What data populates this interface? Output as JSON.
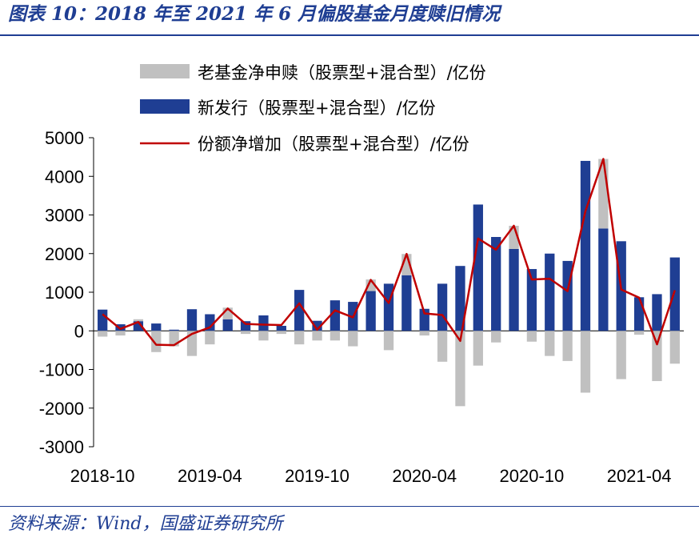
{
  "title": "图表 10：2018 年至 2021 年 6 月偏股基金月度赎旧情况",
  "source": "资料来源：Wind，国盛证券研究所",
  "colors": {
    "old": "#c0c0c0",
    "new": "#1f3e93",
    "net": "#c00000",
    "header": "#1f3e93"
  },
  "chart_data": {
    "type": "bar",
    "stacked": true,
    "ylim": [
      -3000,
      5000
    ],
    "yticks": [
      "5000",
      "4000",
      "3000",
      "2000",
      "1000",
      "0",
      "-1000",
      "-2000",
      "-3000"
    ],
    "ytick_values": [
      5000,
      4000,
      3000,
      2000,
      1000,
      0,
      -1000,
      -2000,
      -3000
    ],
    "categories": [
      "2018-10",
      "2018-11",
      "2018-12",
      "2019-01",
      "2019-02",
      "2019-03",
      "2019-04",
      "2019-05",
      "2019-06",
      "2019-07",
      "2019-08",
      "2019-09",
      "2019-10",
      "2019-11",
      "2019-12",
      "2020-01",
      "2020-02",
      "2020-03",
      "2020-04",
      "2020-05",
      "2020-06",
      "2020-07",
      "2020-08",
      "2020-09",
      "2020-10",
      "2020-11",
      "2020-12",
      "2021-01",
      "2021-02",
      "2021-03",
      "2021-04",
      "2021-05",
      "2021-06"
    ],
    "xtick_labels": [
      {
        "index": 0,
        "label": "2018-10"
      },
      {
        "index": 6,
        "label": "2019-04"
      },
      {
        "index": 12,
        "label": "2019-10"
      },
      {
        "index": 18,
        "label": "2020-04"
      },
      {
        "index": 24,
        "label": "2020-10"
      },
      {
        "index": 30,
        "label": "2021-04"
      }
    ],
    "legend_position": "top",
    "series": [
      {
        "name": "老基金净申赎（股票型+混合型）/亿份",
        "kind": "bar",
        "values": [
          -150,
          -120,
          50,
          -550,
          -400,
          -650,
          -350,
          300,
          -80,
          -250,
          -80,
          -350,
          -250,
          -250,
          -400,
          300,
          -500,
          550,
          -120,
          -800,
          -1950,
          -900,
          -300,
          600,
          -280,
          -650,
          -780,
          -1600,
          1800,
          -1250,
          -100,
          -1300,
          -850
        ]
      },
      {
        "name": "新发行（股票型+混合型）/亿份",
        "kind": "bar",
        "values": [
          550,
          170,
          250,
          190,
          30,
          560,
          430,
          300,
          250,
          400,
          130,
          1060,
          260,
          790,
          750,
          1030,
          1220,
          1440,
          570,
          1220,
          1680,
          3270,
          2430,
          2120,
          1600,
          2000,
          1810,
          4400,
          2650,
          2320,
          870,
          950,
          1900
        ]
      },
      {
        "name": "份额净增加（股票型+混合型）/亿份",
        "kind": "line",
        "values": [
          430,
          50,
          230,
          -360,
          -370,
          -80,
          90,
          580,
          180,
          160,
          150,
          710,
          30,
          530,
          350,
          1320,
          720,
          1990,
          450,
          410,
          -260,
          2390,
          2100,
          2720,
          1330,
          1350,
          1030,
          3100,
          4450,
          1070,
          860,
          -350,
          1050
        ]
      }
    ]
  }
}
